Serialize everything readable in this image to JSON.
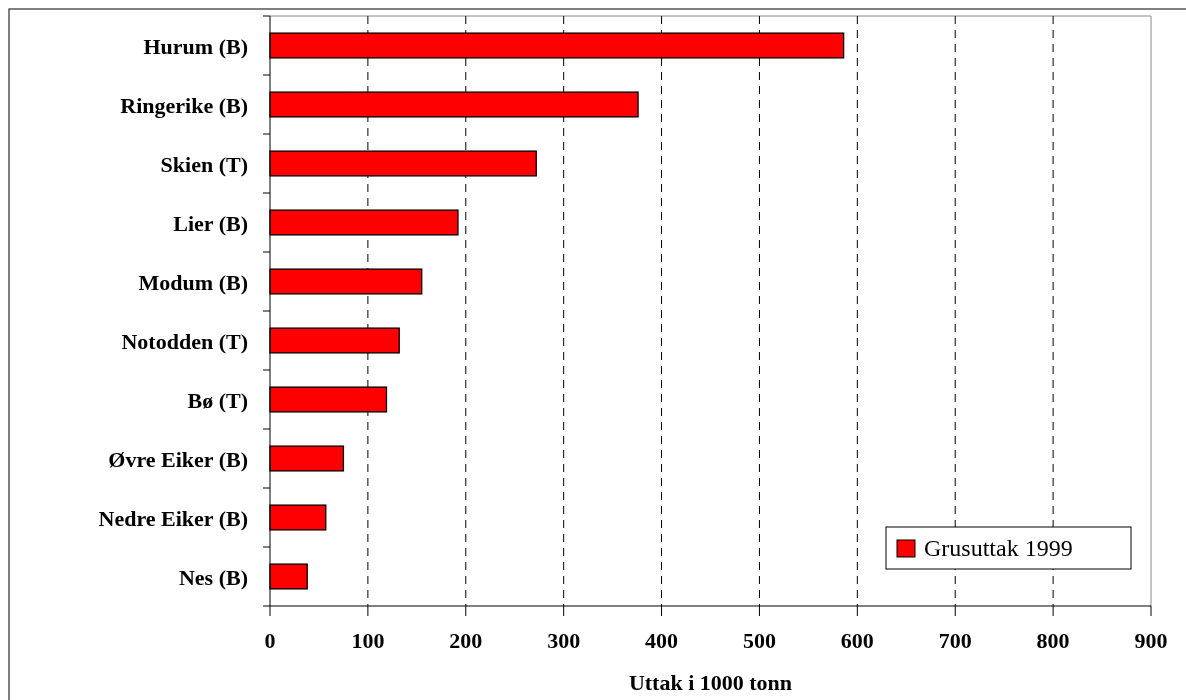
{
  "chart_data": {
    "type": "bar",
    "orientation": "horizontal",
    "xlabel": "Uttak i 1000 tonn",
    "categories": [
      "Hurum (B)",
      "Ringerike (B)",
      "Skien (T)",
      "Lier (B)",
      "Modum (B)",
      "Notodden (T)",
      "Bø (T)",
      "Øvre Eiker (B)",
      "Nedre Eiker (B)",
      "Nes (B)"
    ],
    "series": [
      {
        "name": "Grusuttak 1999",
        "color": "#ff0000",
        "values": [
          586,
          376,
          272,
          192,
          155,
          132,
          119,
          75,
          57,
          38
        ]
      }
    ],
    "xlim": [
      0,
      900
    ],
    "xticks": [
      0,
      100,
      200,
      300,
      400,
      500,
      600,
      700,
      800,
      900
    ],
    "grid": "x",
    "legend": "bottom right"
  }
}
